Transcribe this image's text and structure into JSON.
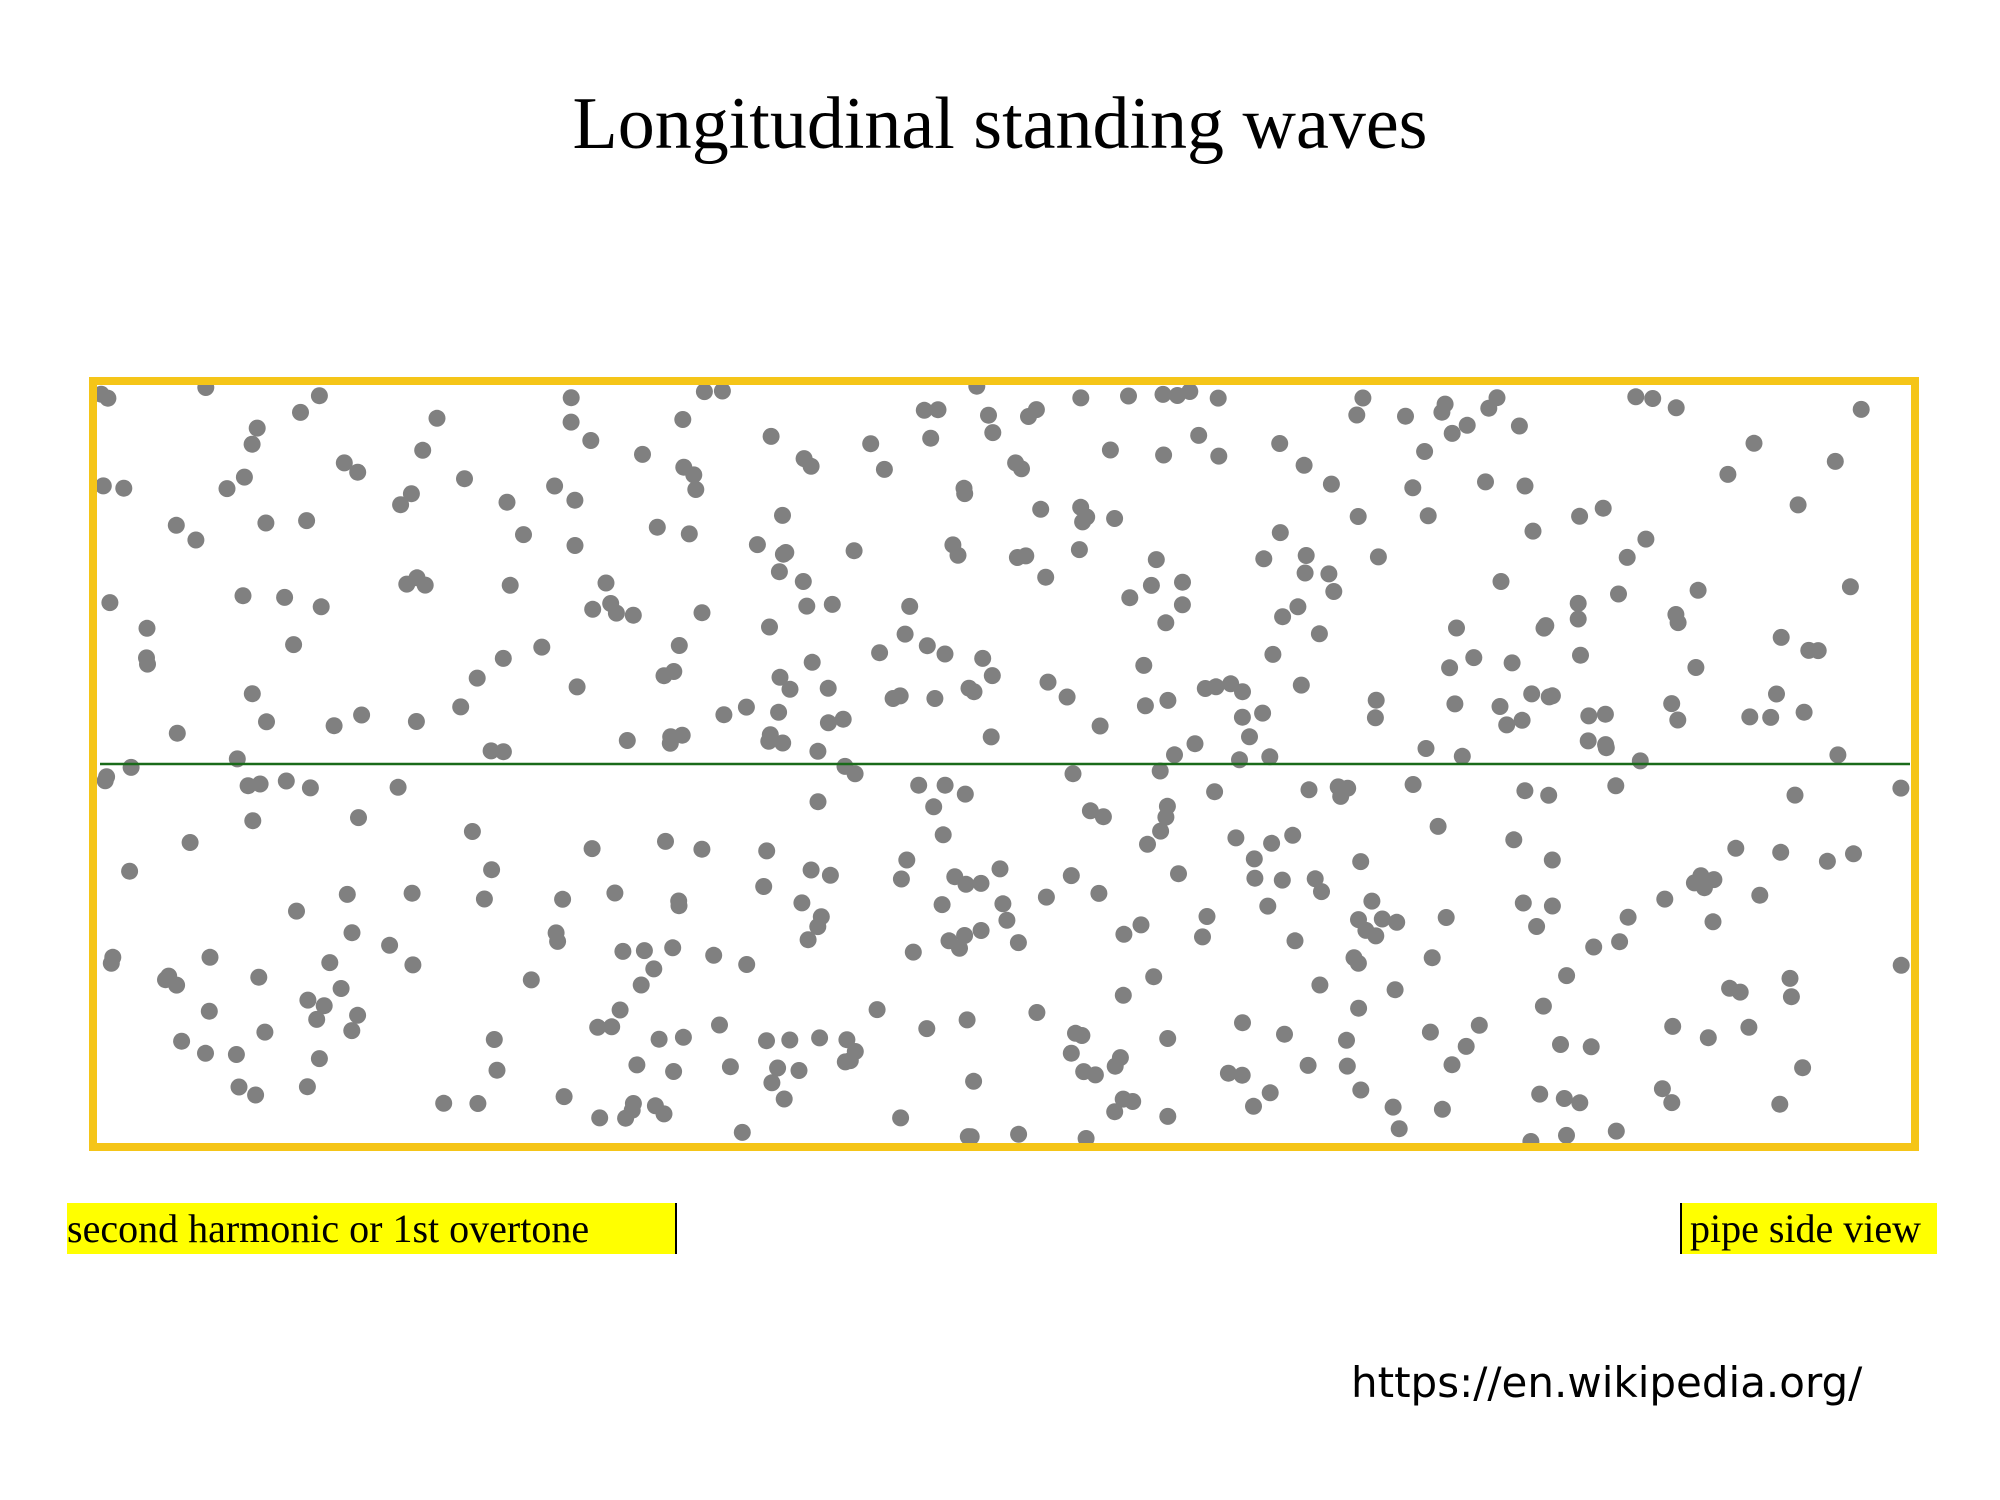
{
  "title": "Longitudinal standing waves",
  "animation": {
    "caption": "second harmonic or 1st overtone",
    "view": "pipe side view"
  },
  "source": "https://en.wikipedia.org/"
}
